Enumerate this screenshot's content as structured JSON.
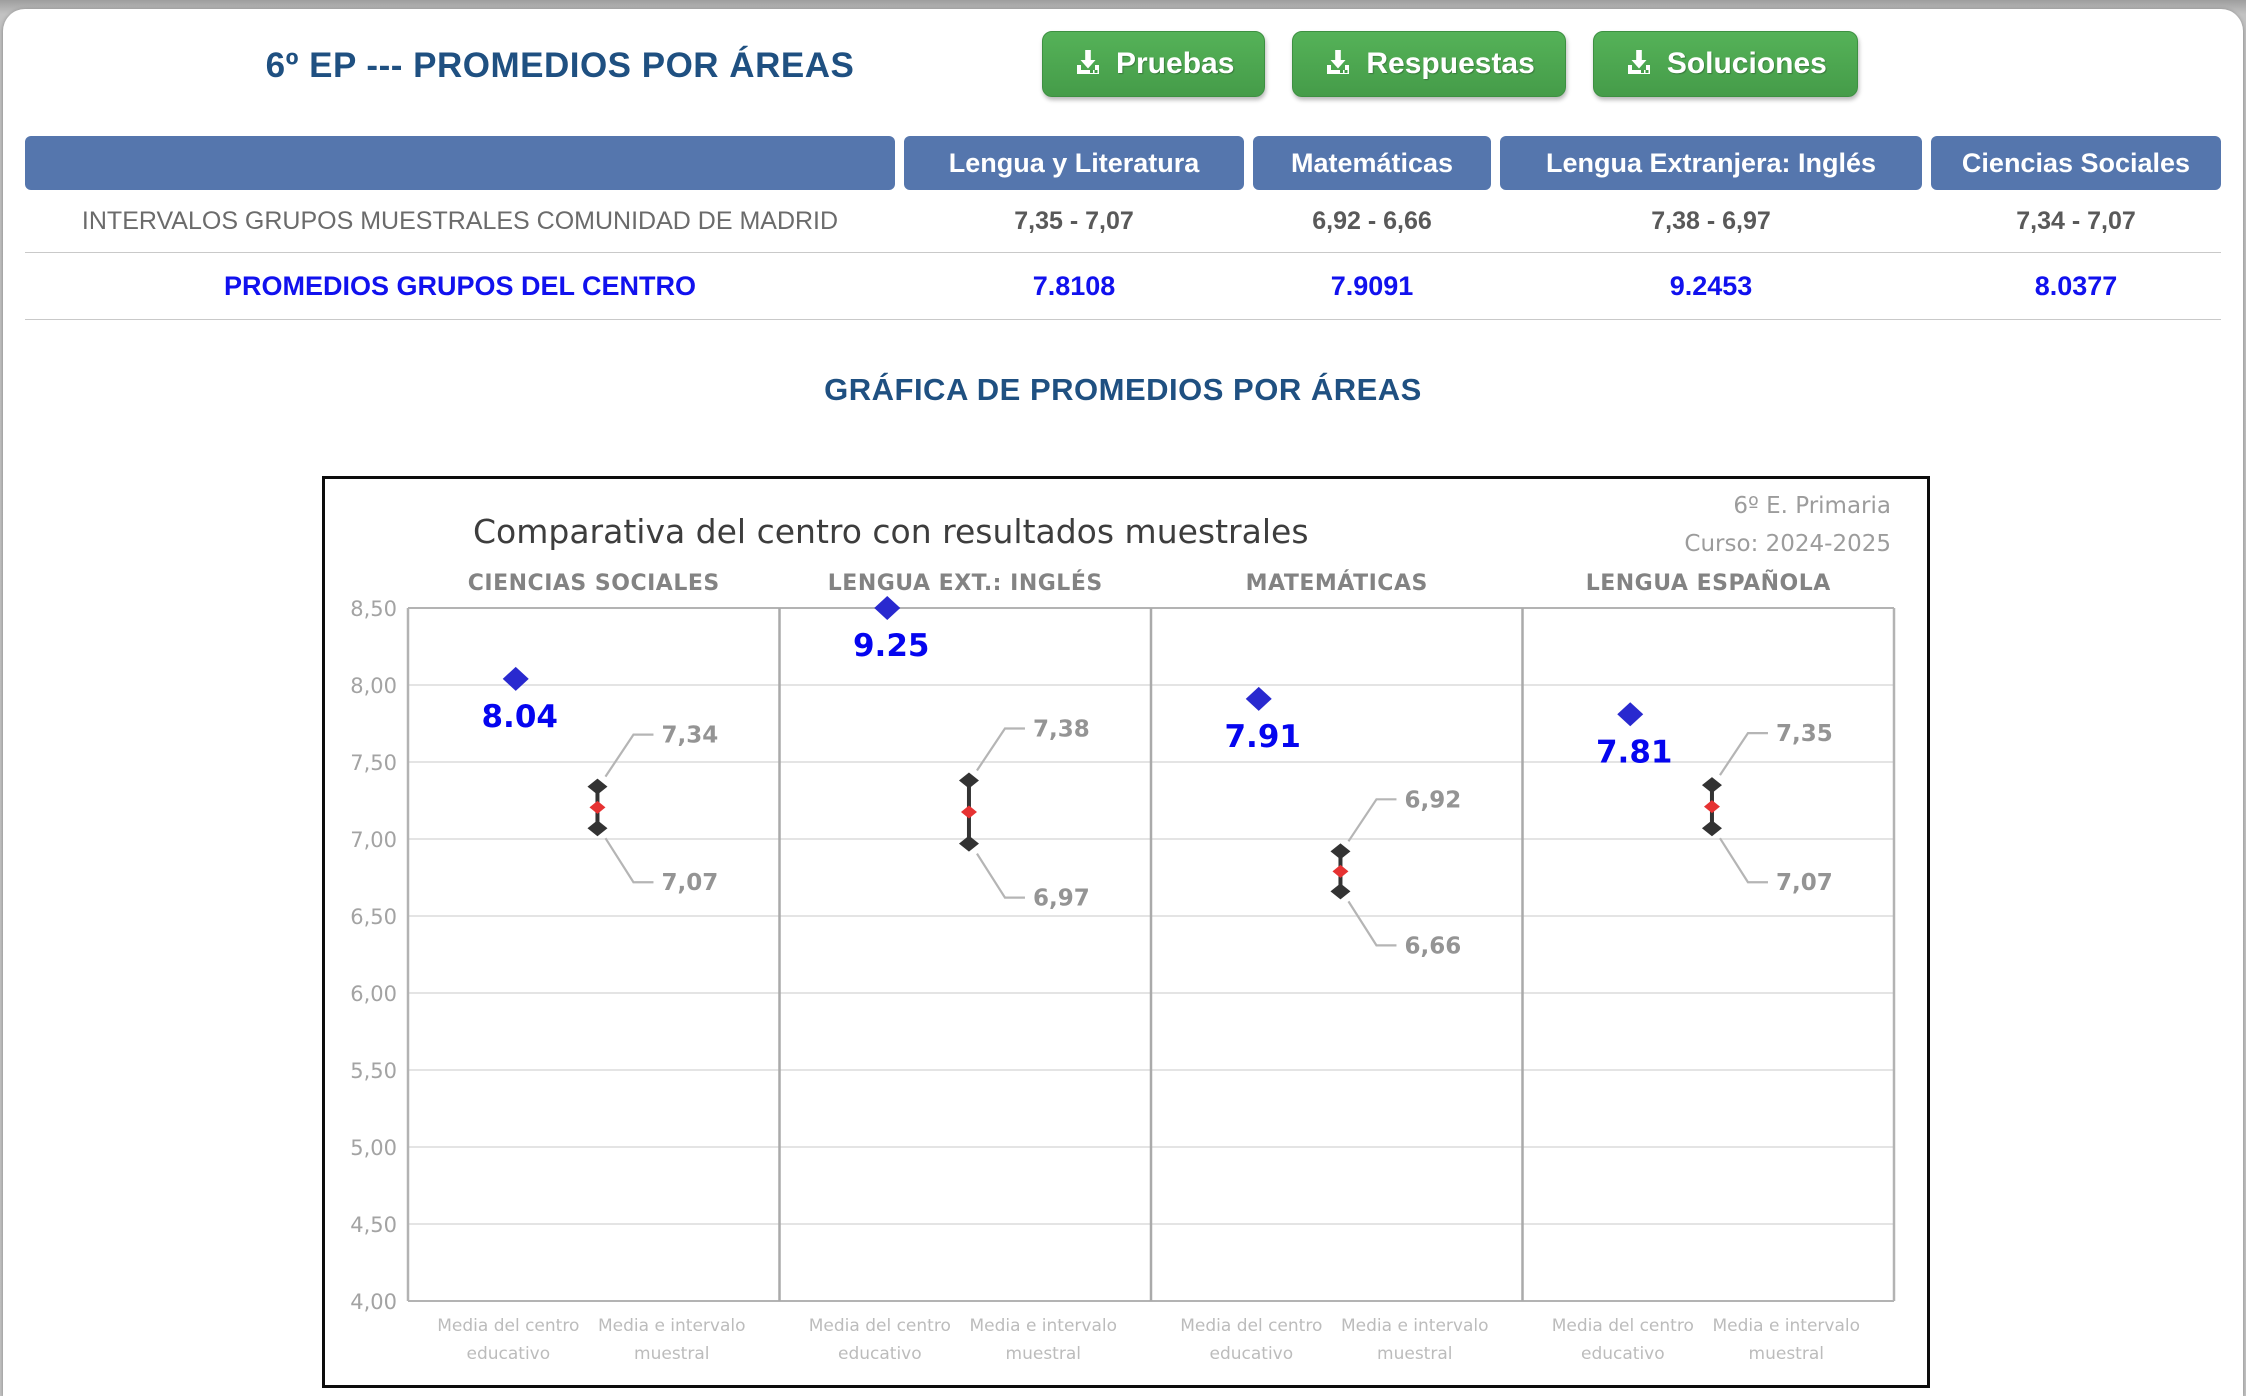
{
  "page": {
    "title": "6º EP --- PROMEDIOS POR ÁREAS",
    "section_heading": "GRÁFICA DE PROMEDIOS POR ÁREAS"
  },
  "buttons": [
    {
      "label": "Pruebas",
      "icon": "download-icon"
    },
    {
      "label": "Respuestas",
      "icon": "download-icon"
    },
    {
      "label": "Soluciones",
      "icon": "download-icon"
    }
  ],
  "table": {
    "columns": [
      "Lengua y Literatura",
      "Matemáticas",
      "Lengua Extranjera: Inglés",
      "Ciencias Sociales"
    ],
    "rows": [
      {
        "label": "INTERVALOS GRUPOS MUESTRALES COMUNIDAD DE MADRID",
        "values": [
          "7,35 - 7,07",
          "6,92 - 6,66",
          "7,38 - 6,97",
          "7,34 - 7,07"
        ]
      },
      {
        "label": "PROMEDIOS GRUPOS DEL CENTRO",
        "values": [
          "7.8108",
          "7.9091",
          "9.2453",
          "8.0377"
        ]
      }
    ]
  },
  "chart_data": {
    "type": "scatter",
    "title": "Comparativa del centro con resultados muestrales",
    "annotations": [
      "6º E. Primaria",
      "Curso: 2024-2025"
    ],
    "ylim": [
      4.0,
      8.5
    ],
    "y_tick_step": 0.5,
    "y_tick_labels": [
      "8,50",
      "8,00",
      "7,50",
      "7,00",
      "6,50",
      "6,00",
      "5,50",
      "5,00",
      "4,50",
      "4,00"
    ],
    "grid": true,
    "legend_position": "none",
    "x_categories": [
      {
        "lines": [
          "Media del centro",
          "educativo"
        ]
      },
      {
        "lines": [
          "Media e intervalo",
          "muestral"
        ]
      }
    ],
    "panels": [
      {
        "title": "CIENCIAS SOCIALES",
        "center_mean": 8.04,
        "center_mean_label": "8.04",
        "interval": {
          "max": 7.34,
          "min": 7.07,
          "mid": 7.205,
          "max_label": "7,34",
          "min_label": "7,07"
        }
      },
      {
        "title": "LENGUA EXT.: INGLÉS",
        "center_mean": 9.25,
        "center_mean_label": "9.25",
        "interval": {
          "max": 7.38,
          "min": 6.97,
          "mid": 7.175,
          "max_label": "7,38",
          "min_label": "6,97"
        }
      },
      {
        "title": "MATEMÁTICAS",
        "center_mean": 7.91,
        "center_mean_label": "7.91",
        "interval": {
          "max": 6.92,
          "min": 6.66,
          "mid": 6.79,
          "max_label": "6,92",
          "min_label": "6,66"
        }
      },
      {
        "title": "LENGUA ESPAÑOLA",
        "center_mean": 7.81,
        "center_mean_label": "7.81",
        "interval": {
          "max": 7.35,
          "min": 7.07,
          "mid": 7.21,
          "max_label": "7,35",
          "min_label": "7,07"
        }
      }
    ]
  },
  "colors": {
    "heading_navy": "#1f5081",
    "table_header_blue": "#5576ad",
    "table_blue_text": "#1111ee",
    "button_green": "#4aa64d",
    "point_blue": "#2929cf",
    "point_label_blue": "#0505ef",
    "interval_black": "#333333",
    "interval_red": "#e63232",
    "callout_gray": "#949494",
    "grid_gray": "#dcdcdc"
  }
}
